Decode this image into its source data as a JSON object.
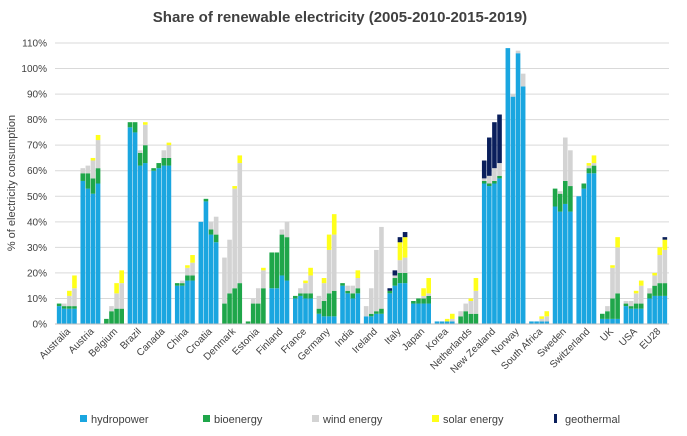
{
  "chart_data": {
    "type": "bar",
    "stacked": true,
    "title": "Share of renewable electricity (2005-2010-2015-2019)",
    "ylabel": "% of electricity consumption",
    "xlabel": "",
    "ylim": [
      0,
      110
    ],
    "yticks": [
      "0%",
      "10%",
      "20%",
      "30%",
      "40%",
      "50%",
      "60%",
      "70%",
      "80%",
      "90%",
      "100%",
      "110%"
    ],
    "grid": "horizontal",
    "legend_position": "bottom",
    "years": [
      "2005",
      "2010",
      "2015",
      "2019"
    ],
    "colors": {
      "hydropower": "#1aa6e0",
      "bioenergy": "#1fa64a",
      "wind energy": "#d3d3d3",
      "solar energy": "#ffff1a",
      "geothermal": "#0a1f5c"
    },
    "series_names": [
      "hydropower",
      "bioenergy",
      "wind energy",
      "solar energy",
      "geothermal"
    ],
    "countries": [
      {
        "name": "Australia",
        "bars": [
          [
            7,
            1,
            0,
            0,
            0
          ],
          [
            6,
            1,
            1,
            0,
            0
          ],
          [
            6,
            1,
            4,
            2,
            0
          ],
          [
            6,
            1,
            7,
            5,
            0
          ]
        ]
      },
      {
        "name": "Austria",
        "bars": [
          [
            56,
            3,
            2,
            0,
            0
          ],
          [
            53,
            6,
            3,
            0,
            0
          ],
          [
            51,
            6,
            7,
            1,
            0
          ],
          [
            55,
            6,
            11,
            2,
            0
          ]
        ]
      },
      {
        "name": "Belgium",
        "bars": [
          [
            0,
            2,
            0,
            0,
            0
          ],
          [
            0,
            5,
            2,
            0,
            0
          ],
          [
            0,
            6,
            6,
            4,
            0
          ],
          [
            0,
            6,
            10,
            5,
            0
          ]
        ]
      },
      {
        "name": "Brazil",
        "bars": [
          [
            77,
            2,
            0,
            0,
            0
          ],
          [
            75,
            4,
            0,
            0,
            0
          ],
          [
            62,
            5,
            1,
            0,
            0
          ],
          [
            63,
            7,
            8,
            1,
            0
          ]
        ]
      },
      {
        "name": "Canada",
        "bars": [
          [
            60,
            1,
            0,
            0,
            0
          ],
          [
            61,
            2,
            0,
            0,
            0
          ],
          [
            62,
            3,
            3,
            0,
            0
          ],
          [
            62,
            3,
            5,
            1,
            0
          ]
        ]
      },
      {
        "name": "China",
        "bars": [
          [
            15,
            1,
            0,
            0,
            0
          ],
          [
            15,
            1,
            1,
            0,
            0
          ],
          [
            17,
            2,
            3,
            1,
            0
          ],
          [
            17,
            2,
            5,
            3,
            0
          ]
        ]
      },
      {
        "name": "Croatia",
        "bars": [
          [
            40,
            0,
            0,
            0,
            0
          ],
          [
            48,
            1,
            0,
            0,
            0
          ],
          [
            35,
            2,
            3,
            0,
            0
          ],
          [
            32,
            3,
            7,
            0,
            0
          ]
        ]
      },
      {
        "name": "Denmark",
        "bars": [
          [
            0,
            8,
            18,
            0,
            0
          ],
          [
            0,
            12,
            21,
            0,
            0
          ],
          [
            0,
            14,
            39,
            1,
            0
          ],
          [
            0,
            16,
            47,
            3,
            0
          ]
        ]
      },
      {
        "name": "Estonia",
        "bars": [
          [
            0,
            1,
            0,
            0,
            0
          ],
          [
            0,
            8,
            2,
            0,
            0
          ],
          [
            0,
            8,
            6,
            0,
            0
          ],
          [
            0,
            14,
            7,
            1,
            0
          ]
        ]
      },
      {
        "name": "Finland",
        "bars": [
          [
            14,
            14,
            0,
            0,
            0
          ],
          [
            14,
            14,
            0,
            0,
            0
          ],
          [
            19,
            16,
            2,
            0,
            0
          ],
          [
            17,
            17,
            6,
            0,
            0
          ]
        ]
      },
      {
        "name": "France",
        "bars": [
          [
            10,
            1,
            0,
            0,
            0
          ],
          [
            11,
            1,
            2,
            0,
            0
          ],
          [
            10,
            2,
            4,
            1,
            0
          ],
          [
            10,
            2,
            7,
            3,
            0
          ]
        ]
      },
      {
        "name": "Germany",
        "bars": [
          [
            4,
            2,
            5,
            0,
            0
          ],
          [
            3,
            6,
            7,
            2,
            0
          ],
          [
            3,
            9,
            17,
            6,
            0
          ],
          [
            3,
            10,
            22,
            8,
            0
          ]
        ]
      },
      {
        "name": "India",
        "bars": [
          [
            15,
            1,
            0,
            0,
            0
          ],
          [
            12,
            1,
            2,
            0,
            0
          ],
          [
            10,
            2,
            3,
            0,
            0
          ],
          [
            12,
            2,
            4,
            3,
            0
          ]
        ]
      },
      {
        "name": "Ireland",
        "bars": [
          [
            3,
            0,
            4,
            0,
            0
          ],
          [
            3,
            1,
            10,
            0,
            0
          ],
          [
            4,
            1,
            24,
            0,
            0
          ],
          [
            4,
            2,
            32,
            0,
            0
          ]
        ]
      },
      {
        "name": "Italy",
        "bars": [
          [
            12,
            1,
            0,
            0,
            1
          ],
          [
            15,
            3,
            1,
            0,
            2
          ],
          [
            16,
            4,
            5,
            7,
            2
          ],
          [
            16,
            4,
            6,
            8,
            2
          ]
        ]
      },
      {
        "name": "Japan",
        "bars": [
          [
            8,
            1,
            0,
            0,
            0
          ],
          [
            8,
            2,
            0,
            0,
            0
          ],
          [
            8,
            2,
            1,
            3,
            0
          ],
          [
            8,
            3,
            1,
            6,
            0
          ]
        ]
      },
      {
        "name": "Korea",
        "bars": [
          [
            1,
            0,
            0,
            0,
            0
          ],
          [
            1,
            0,
            0,
            0,
            0
          ],
          [
            1,
            0,
            0,
            1,
            0
          ],
          [
            1,
            0,
            1,
            2,
            0
          ]
        ]
      },
      {
        "name": "Netherlands",
        "bars": [
          [
            0,
            3,
            2,
            0,
            0
          ],
          [
            0,
            5,
            3,
            0,
            0
          ],
          [
            0,
            4,
            5,
            1,
            0
          ],
          [
            0,
            4,
            9,
            5,
            0
          ]
        ]
      },
      {
        "name": "New Zealand",
        "bars": [
          [
            55,
            1,
            1,
            0,
            7
          ],
          [
            54,
            1,
            3,
            0,
            15
          ],
          [
            55,
            1,
            5,
            0,
            18
          ],
          [
            57,
            1,
            5,
            0,
            19
          ]
        ]
      },
      {
        "name": "Norway",
        "bars": [
          [
            108,
            0,
            0,
            0,
            0
          ],
          [
            89,
            0,
            1,
            0,
            0
          ],
          [
            106,
            0,
            1,
            0,
            0
          ],
          [
            93,
            0,
            5,
            0,
            0
          ]
        ]
      },
      {
        "name": "South Africa",
        "bars": [
          [
            1,
            0,
            0,
            0,
            0
          ],
          [
            1,
            0,
            0,
            0,
            0
          ],
          [
            1,
            0,
            1,
            1,
            0
          ],
          [
            1,
            0,
            2,
            2,
            0
          ]
        ]
      },
      {
        "name": "Sweden",
        "bars": [
          [
            46,
            7,
            0,
            0,
            0
          ],
          [
            44,
            7,
            1,
            0,
            0
          ],
          [
            47,
            9,
            17,
            0,
            0
          ],
          [
            44,
            10,
            14,
            0,
            0
          ]
        ]
      },
      {
        "name": "Switzerland",
        "bars": [
          [
            50,
            0,
            0,
            0,
            0
          ],
          [
            53,
            2,
            0,
            0,
            0
          ],
          [
            59,
            2,
            1,
            1,
            0
          ],
          [
            59,
            3,
            1,
            3,
            0
          ]
        ]
      },
      {
        "name": "UK",
        "bars": [
          [
            2,
            2,
            0,
            0,
            0
          ],
          [
            2,
            3,
            2,
            0,
            0
          ],
          [
            2,
            8,
            12,
            1,
            0
          ],
          [
            2,
            10,
            18,
            4,
            0
          ]
        ]
      },
      {
        "name": "USA",
        "bars": [
          [
            7,
            1,
            1,
            0,
            0
          ],
          [
            6,
            1,
            2,
            0,
            0
          ],
          [
            6,
            2,
            4,
            1,
            0
          ],
          [
            6,
            2,
            7,
            2,
            0
          ]
        ]
      },
      {
        "name": "EU28",
        "bars": [
          [
            10,
            2,
            2,
            0,
            0
          ],
          [
            11,
            4,
            4,
            1,
            0
          ],
          [
            11,
            5,
            11,
            3,
            0
          ],
          [
            11,
            5,
            13,
            4,
            1
          ]
        ]
      }
    ]
  }
}
